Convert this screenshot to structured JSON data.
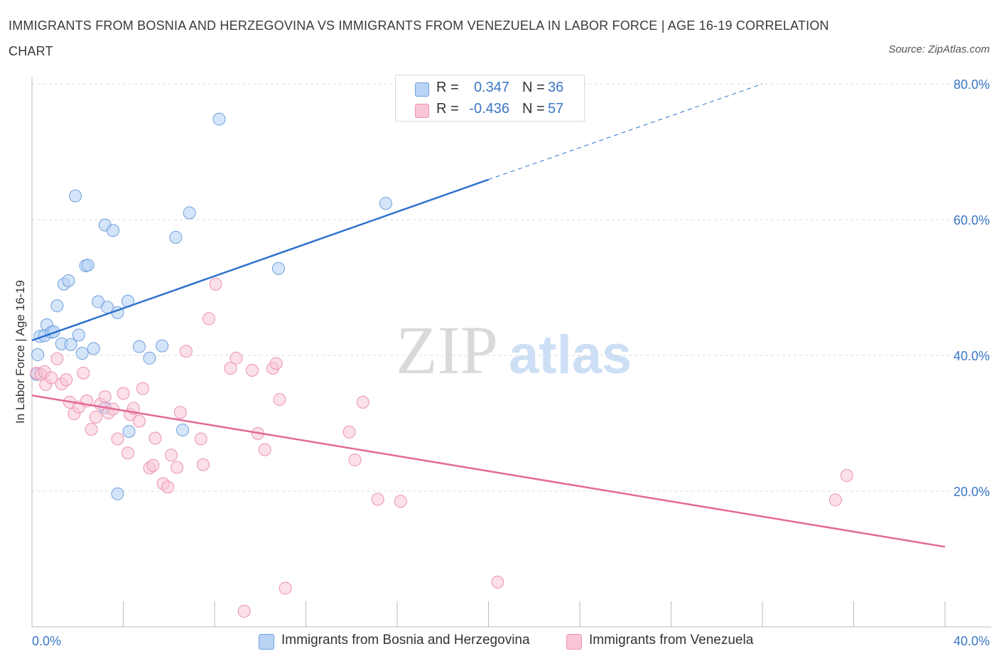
{
  "title": "IMMIGRANTS FROM BOSNIA AND HERZEGOVINA VS IMMIGRANTS FROM VENEZUELA IN LABOR FORCE | AGE 16-19 CORRELATION CHART",
  "source": "Source: ZipAtlas.com",
  "watermark": {
    "zip": "ZIP",
    "atlas": "atlas"
  },
  "colors": {
    "bosnia_fill": "#b9d3f5",
    "bosnia_stroke": "#6e9fdc",
    "bosnia_line": "#2f72cf",
    "venezuela_fill": "#f8c6d6",
    "venezuela_stroke": "#ec92b0",
    "venezuela_line": "#e4699a",
    "axis_label": "#3b76c4",
    "grid": "#dcdcdc"
  },
  "legend_top": {
    "rows": [
      {
        "r_label": "R =",
        "r_value": "0.347",
        "n_label": "N =",
        "n_value": "36"
      },
      {
        "r_label": "R =",
        "r_value": "-0.436",
        "n_label": "N =",
        "n_value": "57"
      }
    ]
  },
  "legend_bottom": {
    "items": [
      "Immigrants from Bosnia and Herzegovina",
      "Immigrants from Venezuela"
    ]
  },
  "chart_data": {
    "type": "scatter",
    "title": "IMMIGRANTS FROM BOSNIA AND HERZEGOVINA VS IMMIGRANTS FROM VENEZUELA IN LABOR FORCE | AGE 16-19 CORRELATION CHART",
    "xlabel": "",
    "ylabel": "In Labor Force | Age 16-19",
    "xlim": [
      0,
      40
    ],
    "ylim": [
      0,
      80
    ],
    "x_tick_labels": [
      "0.0%",
      "40.0%"
    ],
    "y_ticks": [
      20,
      40,
      60,
      80
    ],
    "y_tick_labels": [
      "20.0%",
      "40.0%",
      "60.0%",
      "80.0%"
    ],
    "grid": true,
    "legend": "bottom",
    "series": [
      {
        "name": "Immigrants from Bosnia and Herzegovina",
        "r": 0.347,
        "n": 36,
        "trend": {
          "x0": 0,
          "y0": 42.2,
          "x1": 20,
          "y1": 65.9,
          "dashed_to_x": 32,
          "dashed_to_y": 80.0
        },
        "points": [
          [
            0.2,
            37.2
          ],
          [
            0.25,
            40.1
          ],
          [
            0.35,
            42.8
          ],
          [
            0.55,
            42.9
          ],
          [
            0.65,
            44.5
          ],
          [
            0.85,
            43.4
          ],
          [
            0.95,
            43.5
          ],
          [
            1.1,
            47.3
          ],
          [
            1.3,
            41.7
          ],
          [
            1.4,
            50.5
          ],
          [
            1.6,
            51.0
          ],
          [
            1.7,
            41.6
          ],
          [
            2.05,
            43.0
          ],
          [
            2.2,
            40.3
          ],
          [
            1.9,
            63.5
          ],
          [
            2.35,
            53.2
          ],
          [
            2.45,
            53.3
          ],
          [
            2.7,
            41.0
          ],
          [
            2.9,
            47.9
          ],
          [
            3.2,
            59.2
          ],
          [
            3.3,
            47.1
          ],
          [
            3.55,
            58.4
          ],
          [
            3.75,
            46.3
          ],
          [
            4.2,
            48.0
          ],
          [
            4.25,
            28.8
          ],
          [
            4.7,
            41.3
          ],
          [
            5.15,
            39.6
          ],
          [
            5.7,
            41.4
          ],
          [
            6.3,
            57.4
          ],
          [
            6.6,
            29.0
          ],
          [
            6.9,
            61.0
          ],
          [
            8.2,
            74.8
          ],
          [
            10.8,
            52.8
          ],
          [
            15.5,
            62.4
          ],
          [
            3.75,
            19.6
          ],
          [
            3.2,
            32.3
          ]
        ]
      },
      {
        "name": "Immigrants from Venezuela",
        "r": -0.436,
        "n": 57,
        "trend": {
          "x0": 0,
          "y0": 34.1,
          "x1": 40,
          "y1": 11.8
        },
        "points": [
          [
            0.2,
            37.4
          ],
          [
            0.4,
            37.2
          ],
          [
            0.55,
            37.6
          ],
          [
            0.6,
            35.7
          ],
          [
            0.85,
            36.7
          ],
          [
            1.1,
            39.5
          ],
          [
            1.3,
            35.8
          ],
          [
            1.5,
            36.4
          ],
          [
            1.65,
            33.1
          ],
          [
            1.85,
            31.4
          ],
          [
            2.05,
            32.4
          ],
          [
            2.25,
            37.4
          ],
          [
            2.4,
            33.3
          ],
          [
            2.6,
            29.1
          ],
          [
            2.8,
            30.9
          ],
          [
            3.0,
            32.8
          ],
          [
            3.2,
            33.9
          ],
          [
            3.35,
            31.5
          ],
          [
            3.55,
            32.1
          ],
          [
            3.75,
            27.7
          ],
          [
            4.0,
            34.4
          ],
          [
            4.2,
            25.6
          ],
          [
            4.3,
            31.3
          ],
          [
            4.45,
            32.2
          ],
          [
            4.7,
            30.3
          ],
          [
            4.85,
            35.1
          ],
          [
            5.15,
            23.4
          ],
          [
            5.3,
            23.8
          ],
          [
            5.4,
            27.8
          ],
          [
            5.75,
            21.1
          ],
          [
            5.95,
            20.6
          ],
          [
            6.1,
            25.3
          ],
          [
            6.35,
            23.5
          ],
          [
            6.5,
            31.6
          ],
          [
            6.75,
            40.6
          ],
          [
            7.4,
            27.7
          ],
          [
            7.5,
            23.9
          ],
          [
            7.75,
            45.4
          ],
          [
            8.05,
            50.5
          ],
          [
            8.7,
            38.1
          ],
          [
            8.95,
            39.6
          ],
          [
            9.65,
            37.8
          ],
          [
            9.9,
            28.5
          ],
          [
            10.2,
            26.1
          ],
          [
            10.55,
            38.1
          ],
          [
            10.7,
            38.8
          ],
          [
            10.85,
            33.5
          ],
          [
            11.1,
            5.7
          ],
          [
            13.9,
            28.7
          ],
          [
            14.15,
            24.6
          ],
          [
            14.5,
            33.1
          ],
          [
            15.15,
            18.8
          ],
          [
            16.15,
            18.5
          ],
          [
            20.4,
            6.6
          ],
          [
            35.2,
            18.7
          ],
          [
            35.7,
            22.3
          ],
          [
            9.3,
            2.3
          ]
        ]
      }
    ]
  }
}
